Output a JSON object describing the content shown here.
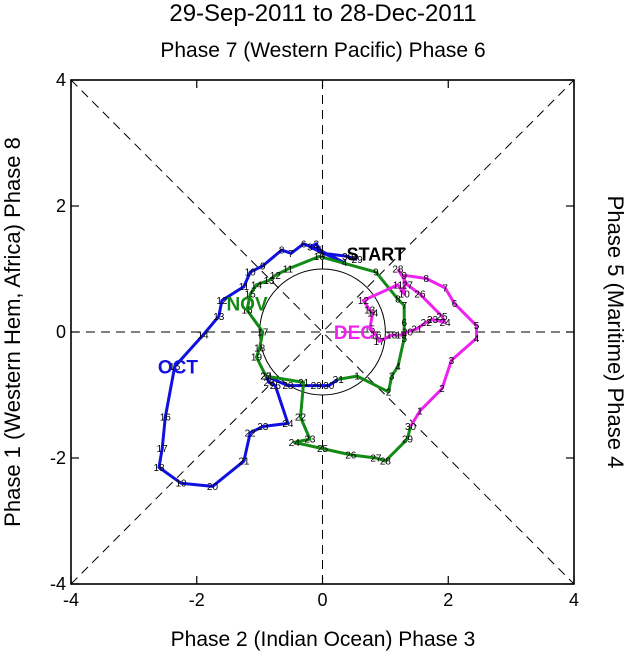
{
  "chart_data": {
    "type": "line",
    "title": "29-Sep-2011 to 28-Dec-2011",
    "top_label": "Phase 7 (Western Pacific) Phase 6",
    "bottom_label": "Phase 2 (Indian Ocean) Phase 3",
    "left_label": "Phase 1 (Western Hem, Africa) Phase 8",
    "right_label": "Phase 5 (Maritime) Phase 4",
    "xlim": [
      -4,
      4
    ],
    "ylim": [
      -4,
      4
    ],
    "x_ticks": [
      "-4",
      "-2",
      "0",
      "2",
      "4"
    ],
    "y_ticks": [
      "-4",
      "-2",
      "0",
      "2",
      "4"
    ],
    "start_label": "START",
    "series": [
      {
        "name": "OCT",
        "color": "#1010e0",
        "label_at": [
          -2.3,
          -0.55
        ],
        "points": [
          {
            "d": "29",
            "x": 0.55,
            "y": 1.15
          },
          {
            "d": "30",
            "x": 0.4,
            "y": 1.2
          },
          {
            "d": "1",
            "x": 0.0,
            "y": 1.25
          },
          {
            "d": "2",
            "x": -0.1,
            "y": 1.4
          },
          {
            "d": "3",
            "x": -0.2,
            "y": 1.35
          },
          {
            "d": "4",
            "x": 0.35,
            "y": 1.1
          },
          {
            "d": "5",
            "x": -0.05,
            "y": 1.3
          },
          {
            "d": "6",
            "x": -0.3,
            "y": 1.4
          },
          {
            "d": "7",
            "x": -0.5,
            "y": 1.25
          },
          {
            "d": "8",
            "x": -0.65,
            "y": 1.3
          },
          {
            "d": "9",
            "x": -0.95,
            "y": 1.05
          },
          {
            "d": "10",
            "x": -1.15,
            "y": 0.95
          },
          {
            "d": "11",
            "x": -1.25,
            "y": 0.72
          },
          {
            "d": "12",
            "x": -1.6,
            "y": 0.5
          },
          {
            "d": "13",
            "x": -1.65,
            "y": 0.25
          },
          {
            "d": "14",
            "x": -1.9,
            "y": -0.05
          },
          {
            "d": "15",
            "x": -2.35,
            "y": -0.55
          },
          {
            "d": "16",
            "x": -2.5,
            "y": -1.35
          },
          {
            "d": "17",
            "x": -2.55,
            "y": -1.85
          },
          {
            "d": "18",
            "x": -2.6,
            "y": -2.15
          },
          {
            "d": "19",
            "x": -2.25,
            "y": -2.4
          },
          {
            "d": "20",
            "x": -1.75,
            "y": -2.45
          },
          {
            "d": "21",
            "x": -1.25,
            "y": -2.05
          },
          {
            "d": "22",
            "x": -1.15,
            "y": -1.6
          },
          {
            "d": "23",
            "x": -0.95,
            "y": -1.5
          },
          {
            "d": "24",
            "x": -0.55,
            "y": -1.45
          },
          {
            "d": "25",
            "x": -0.75,
            "y": -0.85
          },
          {
            "d": "26",
            "x": -0.85,
            "y": -0.8
          },
          {
            "d": "27",
            "x": -0.9,
            "y": -0.7
          },
          {
            "d": "28",
            "x": -0.55,
            "y": -0.85
          },
          {
            "d": "29",
            "x": -0.1,
            "y": -0.85
          },
          {
            "d": "30",
            "x": 0.1,
            "y": -0.85
          },
          {
            "d": "31",
            "x": 0.25,
            "y": -0.75
          }
        ]
      },
      {
        "name": "NOV",
        "color": "#138a13",
        "label_at": [
          -1.2,
          0.45
        ],
        "points": [
          {
            "d": "1",
            "x": 0.55,
            "y": -0.7
          },
          {
            "d": "2",
            "x": 1.05,
            "y": -0.95
          },
          {
            "d": "3",
            "x": 1.1,
            "y": -0.7
          },
          {
            "d": "4",
            "x": 1.2,
            "y": -0.55
          },
          {
            "d": "5",
            "x": 1.3,
            "y": -0.1
          },
          {
            "d": "6",
            "x": 1.3,
            "y": 0.15
          },
          {
            "d": "7",
            "x": 1.3,
            "y": 0.42
          },
          {
            "d": "8",
            "x": 1.2,
            "y": 0.52
          },
          {
            "d": "9",
            "x": 0.85,
            "y": 0.95
          },
          {
            "d": "10",
            "x": -0.05,
            "y": 1.2
          },
          {
            "d": "11",
            "x": -0.55,
            "y": 1.0
          },
          {
            "d": "12",
            "x": -0.75,
            "y": 0.9
          },
          {
            "d": "13",
            "x": -0.85,
            "y": 0.82
          },
          {
            "d": "14",
            "x": -1.05,
            "y": 0.75
          },
          {
            "d": "15",
            "x": -1.15,
            "y": 0.6
          },
          {
            "d": "16",
            "x": -1.2,
            "y": 0.35
          },
          {
            "d": "17",
            "x": -0.95,
            "y": 0.0
          },
          {
            "d": "18",
            "x": -1.0,
            "y": -0.25
          },
          {
            "d": "19",
            "x": -1.05,
            "y": -0.4
          },
          {
            "d": "20",
            "x": -0.9,
            "y": -0.7
          },
          {
            "d": "21",
            "x": -0.3,
            "y": -0.8
          },
          {
            "d": "22",
            "x": -0.35,
            "y": -1.35
          },
          {
            "d": "23",
            "x": -0.2,
            "y": -1.7
          },
          {
            "d": "24",
            "x": -0.45,
            "y": -1.75
          },
          {
            "d": "25",
            "x": 0.0,
            "y": -1.85
          },
          {
            "d": "26",
            "x": 0.45,
            "y": -1.95
          },
          {
            "d": "27",
            "x": 0.85,
            "y": -2.0
          },
          {
            "d": "28",
            "x": 1.0,
            "y": -2.05
          },
          {
            "d": "29",
            "x": 1.35,
            "y": -1.7
          },
          {
            "d": "30",
            "x": 1.4,
            "y": -1.5
          }
        ]
      },
      {
        "name": "DEC",
        "color": "#ee22ee",
        "label_at": [
          0.5,
          0.0
        ],
        "points": [
          {
            "d": "1",
            "x": 1.55,
            "y": -1.25
          },
          {
            "d": "2",
            "x": 1.9,
            "y": -0.9
          },
          {
            "d": "3",
            "x": 2.05,
            "y": -0.45
          },
          {
            "d": "4",
            "x": 2.45,
            "y": -0.1
          },
          {
            "d": "5",
            "x": 2.45,
            "y": 0.1
          },
          {
            "d": "6",
            "x": 2.1,
            "y": 0.45
          },
          {
            "d": "7",
            "x": 1.95,
            "y": 0.7
          },
          {
            "d": "8",
            "x": 1.65,
            "y": 0.85
          },
          {
            "d": "9",
            "x": 1.3,
            "y": 0.9
          },
          {
            "d": "10",
            "x": 1.3,
            "y": 0.6
          },
          {
            "d": "11",
            "x": 1.2,
            "y": 0.75
          },
          {
            "d": "12",
            "x": 0.65,
            "y": 0.5
          },
          {
            "d": "13",
            "x": 0.75,
            "y": 0.35
          },
          {
            "d": "14",
            "x": 0.8,
            "y": 0.3
          },
          {
            "d": "15",
            "x": 0.75,
            "y": 0.05
          },
          {
            "d": "16",
            "x": 0.85,
            "y": -0.05
          },
          {
            "d": "17",
            "x": 0.9,
            "y": -0.15
          },
          {
            "d": "18",
            "x": 1.1,
            "y": -0.05
          },
          {
            "d": "19",
            "x": 1.25,
            "y": -0.05
          },
          {
            "d": "20",
            "x": 1.35,
            "y": 0.0
          },
          {
            "d": "21",
            "x": 1.5,
            "y": 0.05
          },
          {
            "d": "22",
            "x": 1.65,
            "y": 0.15
          },
          {
            "d": "23",
            "x": 1.75,
            "y": 0.2
          },
          {
            "d": "24",
            "x": 1.95,
            "y": 0.15
          },
          {
            "d": "25",
            "x": 1.9,
            "y": 0.25
          },
          {
            "d": "26",
            "x": 1.55,
            "y": 0.6
          },
          {
            "d": "27",
            "x": 1.35,
            "y": 0.75
          },
          {
            "d": "28",
            "x": 1.2,
            "y": 1.0
          }
        ]
      }
    ]
  }
}
